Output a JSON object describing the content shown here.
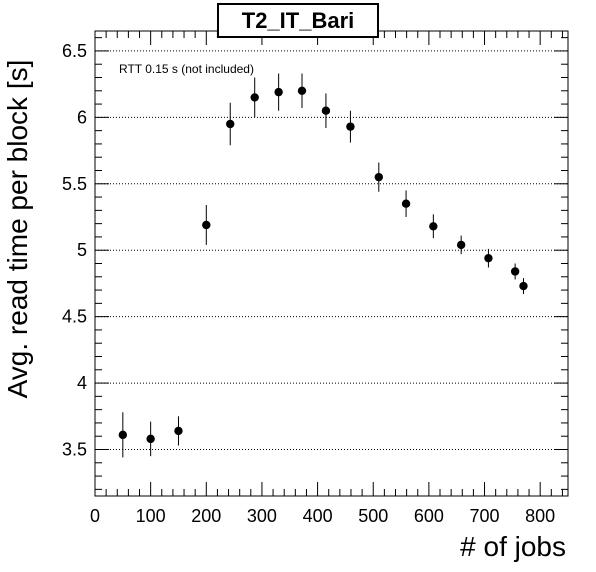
{
  "chart_data": {
    "type": "scatter",
    "title": "T2_IT_Bari",
    "xlabel": "# of jobs",
    "ylabel": "Avg. read time per block [s]",
    "xlim": [
      0,
      850
    ],
    "ylim": [
      3.15,
      6.65
    ],
    "x_ticks": [
      0,
      100,
      200,
      300,
      400,
      500,
      600,
      700,
      800
    ],
    "y_ticks": [
      3.5,
      4,
      4.5,
      5,
      5.5,
      6,
      6.5
    ],
    "x_tick_labels": [
      "0",
      "100",
      "200",
      "300",
      "400",
      "500",
      "600",
      "700",
      "800"
    ],
    "y_tick_labels": [
      "3.5",
      "4",
      "4.5",
      "5",
      "5.5",
      "6",
      "6.5"
    ],
    "grid": "horizontal dotted",
    "annotation": "RTT 0.15 s (not included)",
    "points": [
      {
        "x": 50,
        "y": 3.61,
        "err": 0.17
      },
      {
        "x": 100,
        "y": 3.58,
        "err": 0.13
      },
      {
        "x": 150,
        "y": 3.64,
        "err": 0.11
      },
      {
        "x": 200,
        "y": 5.19,
        "err": 0.15
      },
      {
        "x": 243,
        "y": 5.95,
        "err": 0.16
      },
      {
        "x": 287,
        "y": 6.15,
        "err": 0.15
      },
      {
        "x": 330,
        "y": 6.19,
        "err": 0.14
      },
      {
        "x": 372,
        "y": 6.2,
        "err": 0.13
      },
      {
        "x": 415,
        "y": 6.05,
        "err": 0.13
      },
      {
        "x": 459,
        "y": 5.93,
        "err": 0.12
      },
      {
        "x": 510,
        "y": 5.55,
        "err": 0.11
      },
      {
        "x": 559,
        "y": 5.35,
        "err": 0.1
      },
      {
        "x": 608,
        "y": 5.18,
        "err": 0.09
      },
      {
        "x": 658,
        "y": 5.04,
        "err": 0.07
      },
      {
        "x": 707,
        "y": 4.94,
        "err": 0.07
      },
      {
        "x": 755,
        "y": 4.84,
        "err": 0.06
      },
      {
        "x": 770,
        "y": 4.73,
        "err": 0.06
      }
    ],
    "colors": {
      "marker": "#000000",
      "grid": "#000000",
      "frame": "#000000"
    }
  }
}
